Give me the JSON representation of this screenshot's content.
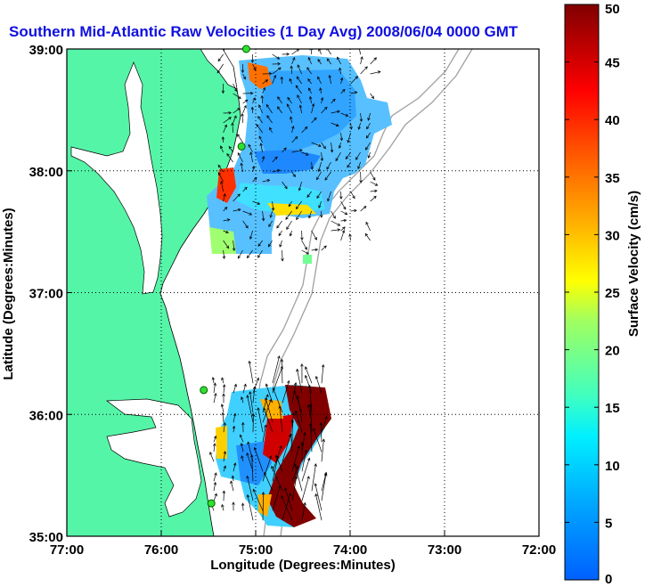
{
  "chart_data": {
    "type": "heatmap",
    "title": "Southern Mid-Atlantic Raw Velocities (1 Day Avg) 2008/06/04 0000 GMT",
    "xlabel": "Longitude (Degrees:Minutes)",
    "ylabel": "Latitude (Degrees:Minutes)",
    "x_ticks": [
      "77:00",
      "76:00",
      "75:00",
      "74:00",
      "73:00",
      "72:00"
    ],
    "y_ticks": [
      "39:00",
      "38:00",
      "37:00",
      "36:00",
      "35:00"
    ],
    "xlim": [
      -77,
      -72
    ],
    "ylim": [
      35,
      39
    ],
    "grid": true,
    "colorbar": {
      "label": "Surface Velocity (cm/s)",
      "ticks": [
        "50",
        "45",
        "40",
        "35",
        "30",
        "25",
        "20",
        "15",
        "10",
        "5",
        "0"
      ],
      "range": [
        0,
        50
      ],
      "colormap": "jet"
    },
    "stations": [
      {
        "lon": -75.1,
        "lat": 39.0
      },
      {
        "lon": -75.15,
        "lat": 38.2
      },
      {
        "lon": -75.55,
        "lat": 36.2
      },
      {
        "lon": -75.47,
        "lat": 35.27
      }
    ],
    "velocity_regions": [
      {
        "region": "north",
        "lon_range": [
          -75.4,
          -73.7
        ],
        "lat_range": [
          37.3,
          39.0
        ],
        "typical_speed": 8,
        "max_speed": 45
      },
      {
        "region": "south",
        "lon_range": [
          -75.5,
          -74.2
        ],
        "lat_range": [
          35.1,
          36.3
        ],
        "typical_speed": 12,
        "max_speed": 50
      }
    ]
  },
  "colors": {
    "land": "#55f5a8",
    "title": "#1010e0",
    "water": "#ffffff",
    "bathymetry": "#a0a0a0"
  }
}
